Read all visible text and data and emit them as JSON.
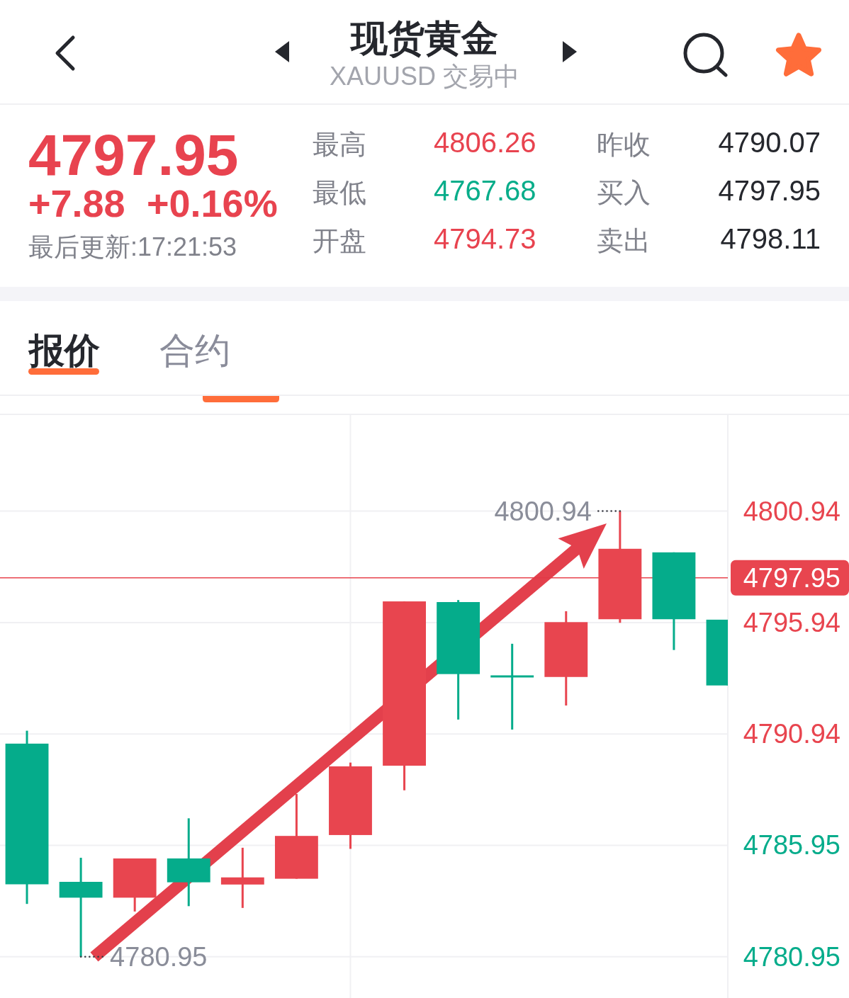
{
  "chart_data": [
    {
      "type": "other",
      "title": "现货黄金",
      "subtitle": "XAUUSD 交易中",
      "annotations": [
        "4797.95",
        "+7.88",
        "+0.16%",
        "最后更新:17:21:53",
        "最高",
        "4806.26",
        "最低",
        "4767.68",
        "开盘",
        "4794.73",
        "昨收",
        "4790.07",
        "买入",
        "4797.95",
        "卖出",
        "4798.11",
        "报价",
        "合约"
      ]
    },
    {
      "type": "candlestick",
      "categories": [
        null,
        null,
        null,
        null,
        null,
        null,
        null,
        null,
        null,
        null,
        null,
        null,
        null,
        null
      ],
      "ohlc": [
        [
          4790.51,
          4791.09,
          4783.32,
          4784.2
        ],
        [
          4784.31,
          4785.39,
          4780.95,
          4783.6
        ],
        [
          4783.6,
          4785.36,
          4782.98,
          4785.36
        ],
        [
          4785.36,
          4787.16,
          4783.22,
          4784.29
        ],
        [
          4784.19,
          4785.84,
          4783.14,
          4784.51
        ],
        [
          4784.45,
          4788.25,
          4784.45,
          4786.37
        ],
        [
          4786.41,
          4789.66,
          4785.79,
          4789.49
        ],
        [
          4789.52,
          4796.89,
          4788.42,
          4796.89
        ],
        [
          4796.86,
          4796.95,
          4791.59,
          4793.63
        ],
        [
          4793.56,
          4794.99,
          4791.14,
          4793.49
        ],
        [
          4793.5,
          4796.45,
          4792.22,
          4795.96
        ],
        [
          4796.09,
          4800.94,
          4795.93,
          4799.25
        ],
        [
          4799.09,
          4799.09,
          4794.71,
          4796.09
        ],
        [
          4796.07,
          4796.07,
          4793.12,
          4793.12
        ]
      ],
      "colors": [
        "#05ac8b",
        "#05ac8b",
        "#e8454f",
        "#05ac8b",
        "#e8454f",
        "#e8454f",
        "#e8454f",
        "#e8454f",
        "#05ac8b",
        "#05ac8b",
        "#e8454f",
        "#e8454f",
        "#05ac8b",
        "#05ac8b"
      ],
      "ylim": [
        4779.1,
        4805.28
      ],
      "yticks": [
        4800.94,
        4795.94,
        4790.94,
        4785.95,
        4780.95
      ],
      "grid": "y",
      "ref_lines": [
        {
          "axis": "y",
          "value": 4797.95,
          "label": "4797.95",
          "color": "#e8454f"
        }
      ],
      "annotations": [
        "4800.94",
        "4780.95"
      ]
    }
  ]
}
